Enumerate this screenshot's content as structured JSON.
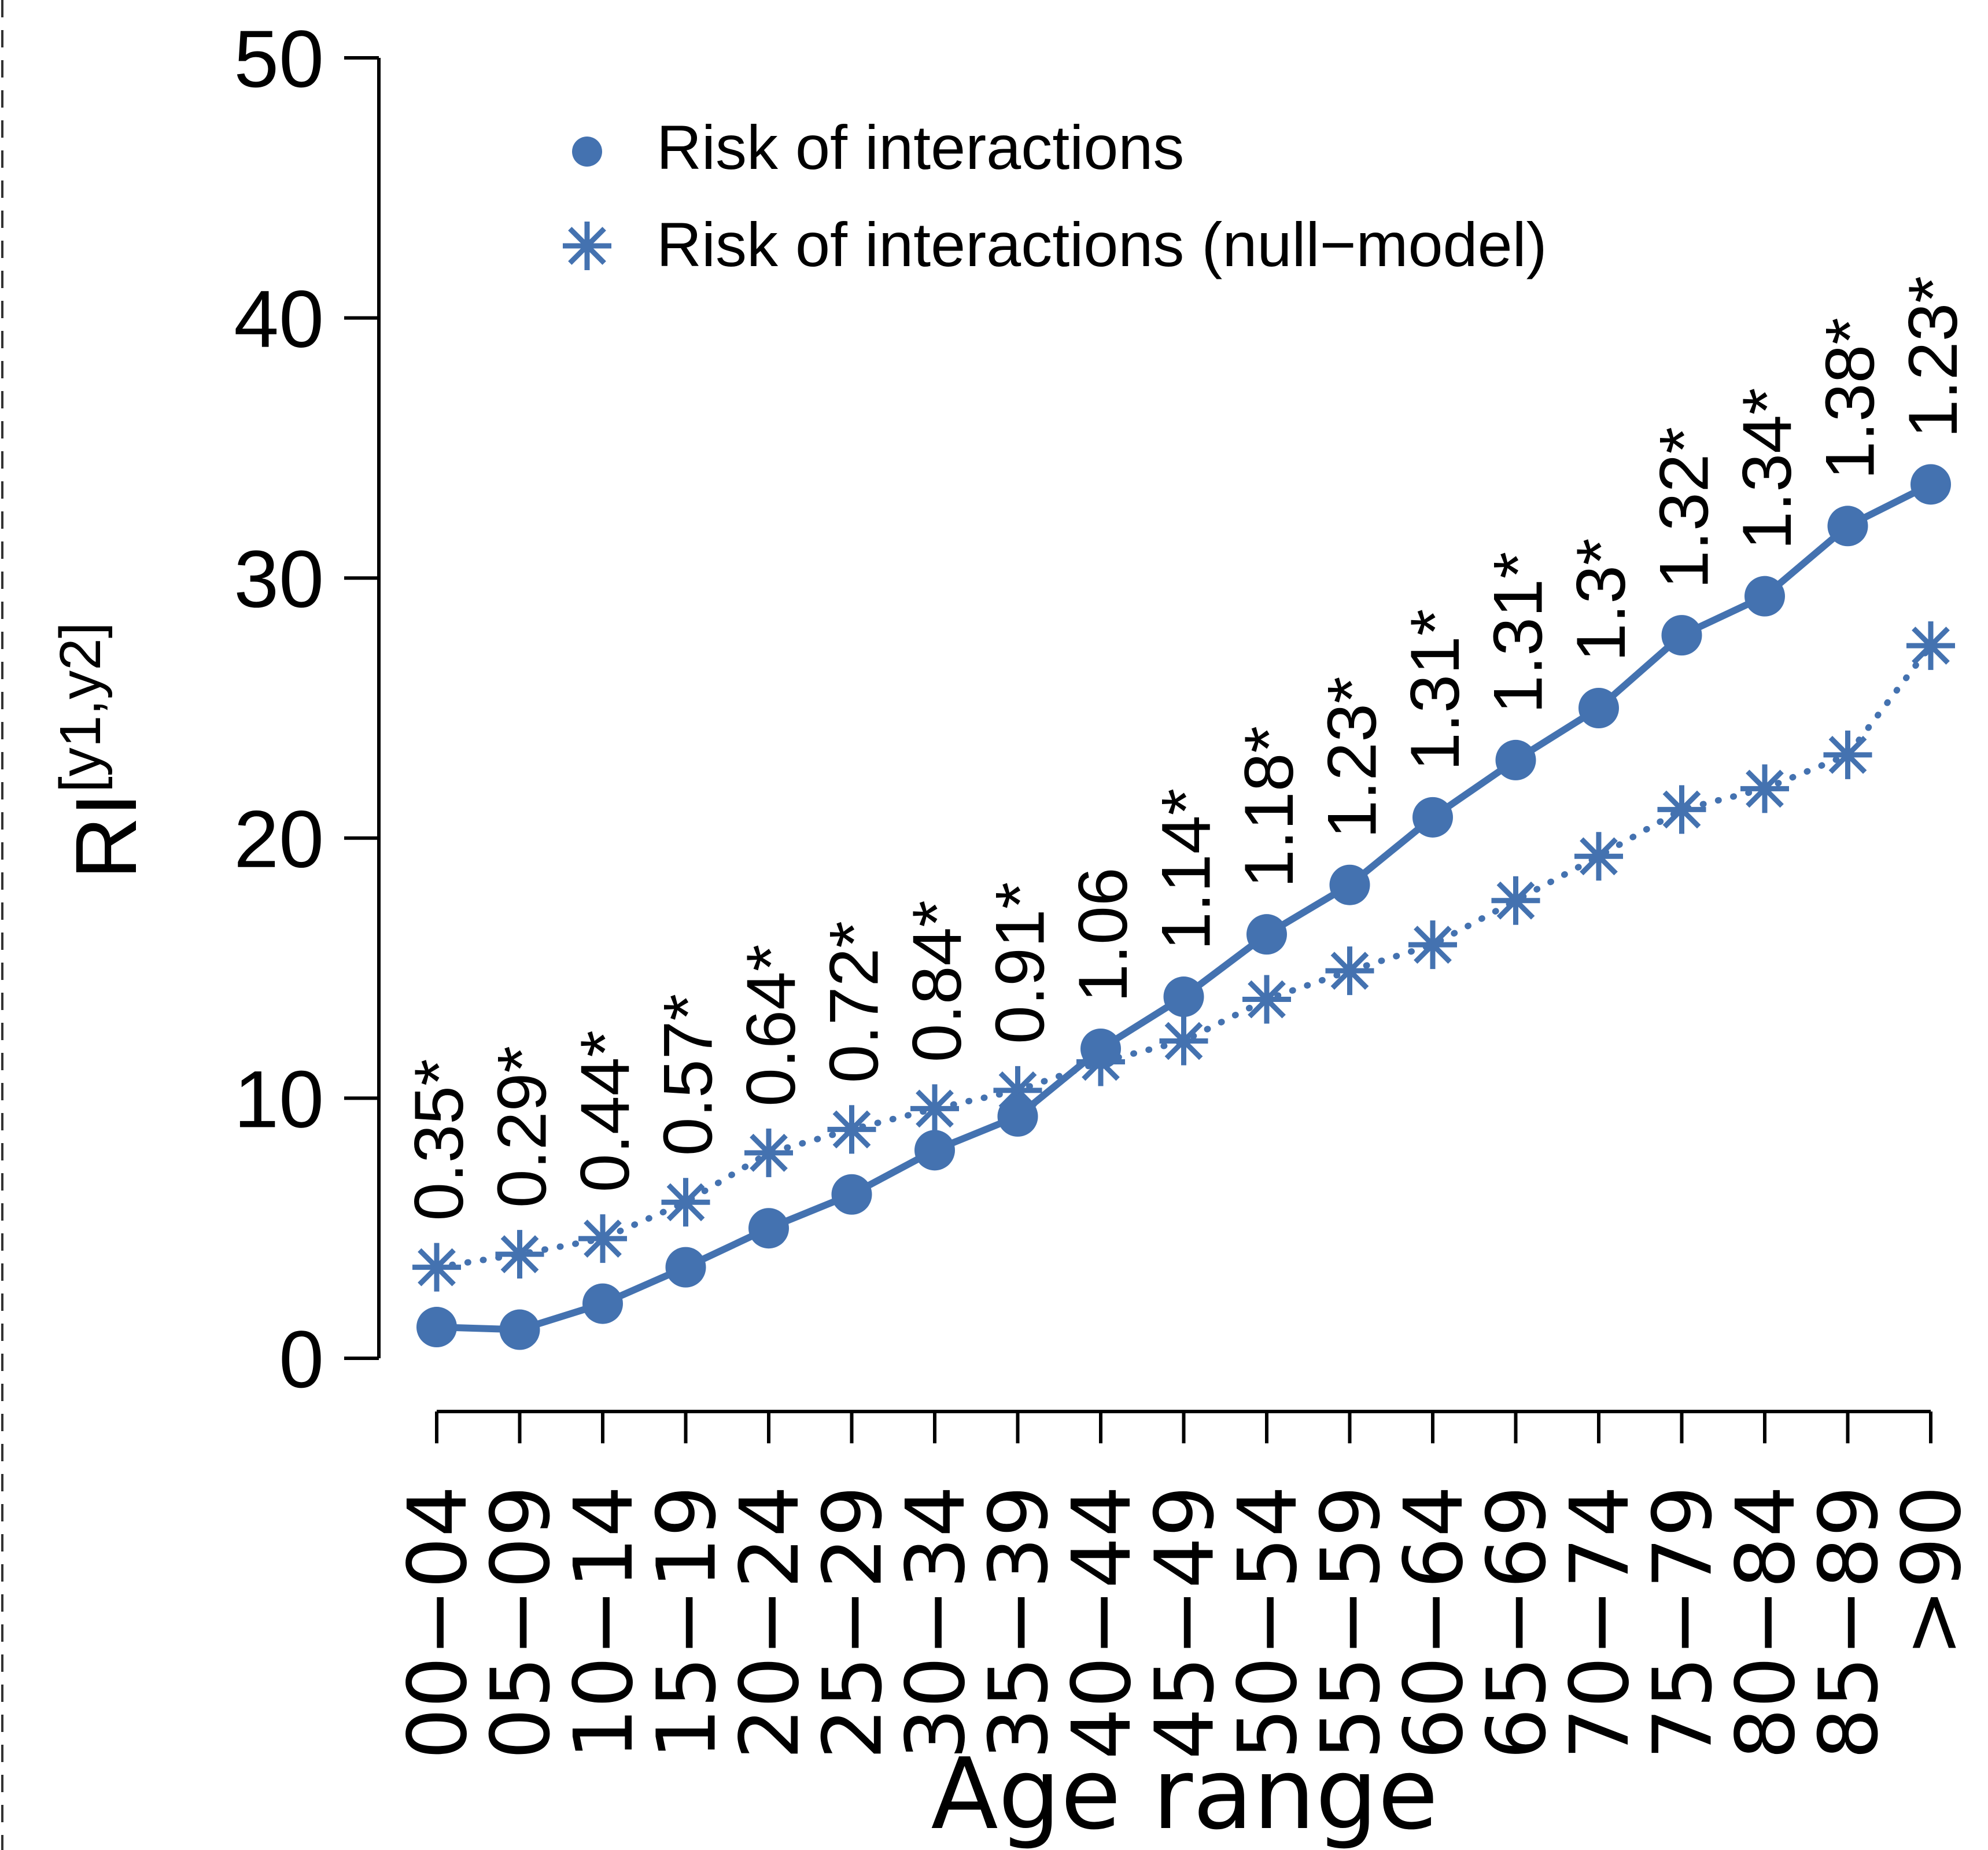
{
  "chart_data": {
    "type": "line",
    "xlabel": "Age range",
    "ylabel": "RI",
    "ylabel_superscript": "[y1,y2]",
    "ylim": [
      0,
      50
    ],
    "yticks": [
      "0",
      "10",
      "20",
      "30",
      "40",
      "50"
    ],
    "ytick_values": [
      0,
      10,
      20,
      30,
      40,
      50
    ],
    "grid": false,
    "legend_position": "top-left",
    "categories": [
      "00−04",
      "05−09",
      "10−14",
      "15−19",
      "20−24",
      "25−29",
      "30−34",
      "35−39",
      "40−44",
      "45−49",
      "50−54",
      "55−59",
      "60−64",
      "65−69",
      "70−74",
      "75−79",
      "80−84",
      "85−89",
      ">90"
    ],
    "series": [
      {
        "name": "Risk of interactions",
        "marker": "circle",
        "line": "solid",
        "values": [
          1.2,
          1.1,
          2.1,
          3.5,
          5.0,
          6.3,
          8.0,
          9.3,
          11.9,
          13.9,
          16.3,
          18.2,
          20.8,
          23.0,
          25.0,
          27.8,
          29.3,
          32.0,
          33.6
        ]
      },
      {
        "name": "Risk of interactions (null−model)",
        "marker": "asterisk",
        "line": "dotted",
        "values": [
          3.5,
          4.0,
          4.6,
          6.0,
          7.9,
          8.8,
          9.6,
          10.3,
          11.4,
          12.2,
          13.8,
          14.9,
          15.9,
          17.6,
          19.3,
          21.1,
          21.9,
          23.2,
          27.4
        ]
      }
    ],
    "annotations": [
      "0.35*",
      "0.29*",
      "0.44*",
      "0.57*",
      "0.64*",
      "0.72*",
      "0.84*",
      "0.91*",
      "1.06",
      "1.14*",
      "1.18*",
      "1.23*",
      "1.31*",
      "1.31*",
      "1.3*",
      "1.32*",
      "1.34*",
      "1.38*",
      "1.23*"
    ],
    "colors": {
      "series": "#4472b0",
      "axis": "#000000",
      "text": "#000000",
      "frame_dash": "#333333"
    }
  }
}
